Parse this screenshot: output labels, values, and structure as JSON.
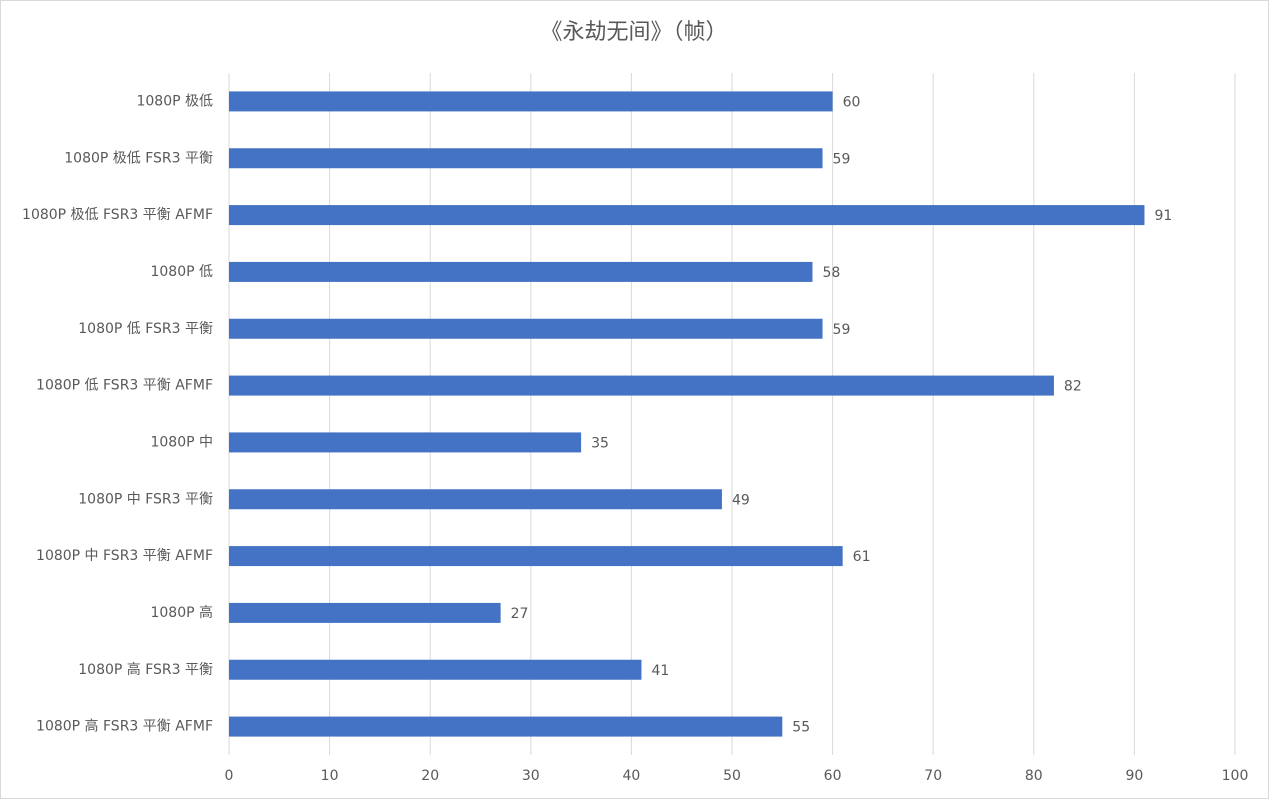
{
  "chart_data": {
    "type": "bar",
    "orientation": "horizontal",
    "title": "《永劫无间》（帧）",
    "categories": [
      "1080P 极低",
      "1080P 极低 FSR3 平衡",
      "1080P 极低 FSR3 平衡 AFMF",
      "1080P 低",
      "1080P 低 FSR3 平衡",
      "1080P 低 FSR3 平衡 AFMF",
      "1080P 中",
      "1080P 中 FSR3 平衡",
      "1080P 中 FSR3 平衡 AFMF",
      "1080P 高",
      "1080P 高 FSR3 平衡",
      "1080P 高 FSR3 平衡 AFMF"
    ],
    "values": [
      60,
      59,
      91,
      58,
      59,
      82,
      35,
      49,
      61,
      27,
      41,
      55
    ],
    "color": "#4472c4",
    "xlim": [
      0,
      100
    ],
    "xticks": [
      0,
      10,
      20,
      30,
      40,
      50,
      60,
      70,
      80,
      90,
      100
    ],
    "grid": true
  }
}
